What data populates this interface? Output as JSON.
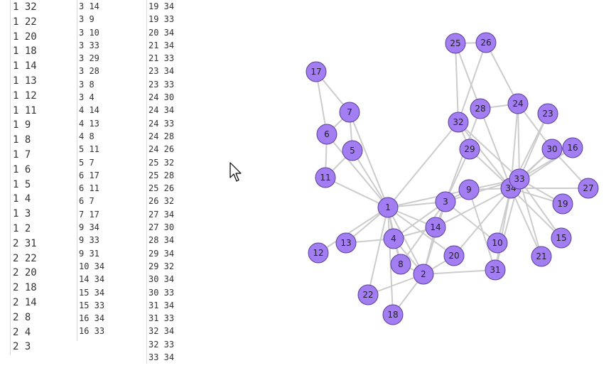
{
  "edge_columns": [
    [
      "1 32",
      "1 22",
      "1 20",
      "1 18",
      "1 14",
      "1 13",
      "1 12",
      "1 11",
      "1 9",
      "1 8",
      "1 7",
      "1 6",
      "1 5",
      "1 4",
      "1 3",
      "1 2",
      "2 31",
      "2 22",
      "2 20",
      "2 18",
      "2 14",
      "2 8",
      "2 4",
      "2 3"
    ],
    [
      "3 14",
      "3 9",
      "3 10",
      "3 33",
      "3 29",
      "3 28",
      "3 8",
      "3 4",
      "4 14",
      "4 13",
      "4 8",
      "5 11",
      "5 7",
      "6 17",
      "6 11",
      "6 7",
      "7 17",
      "9 34",
      "9 33",
      "9 31",
      "10 34",
      "14 34",
      "15 34",
      "15 33",
      "16 34",
      "16 33"
    ],
    [
      "19 34",
      "19 33",
      "20 34",
      "21 34",
      "21 33",
      "23 34",
      "23 33",
      "24 30",
      "24 34",
      "24 33",
      "24 28",
      "24 26",
      "25 32",
      "25 28",
      "25 26",
      "26 32",
      "27 34",
      "27 30",
      "28 34",
      "29 34",
      "29 32",
      "30 34",
      "30 33",
      "31 34",
      "31 33",
      "32 34",
      "32 33",
      "33 34"
    ]
  ],
  "graph": {
    "node_color": "#a37ef2",
    "node_stroke": "#5a3f99",
    "edge_color": "#cccccc",
    "node_order": [
      "1",
      "2",
      "3",
      "4",
      "5",
      "6",
      "7",
      "8",
      "9",
      "10",
      "11",
      "12",
      "13",
      "14",
      "15",
      "16",
      "17",
      "18",
      "19",
      "20",
      "21",
      "22",
      "23",
      "24",
      "25",
      "26",
      "27",
      "28",
      "29",
      "30",
      "31",
      "32",
      "34",
      "33"
    ]
  }
}
